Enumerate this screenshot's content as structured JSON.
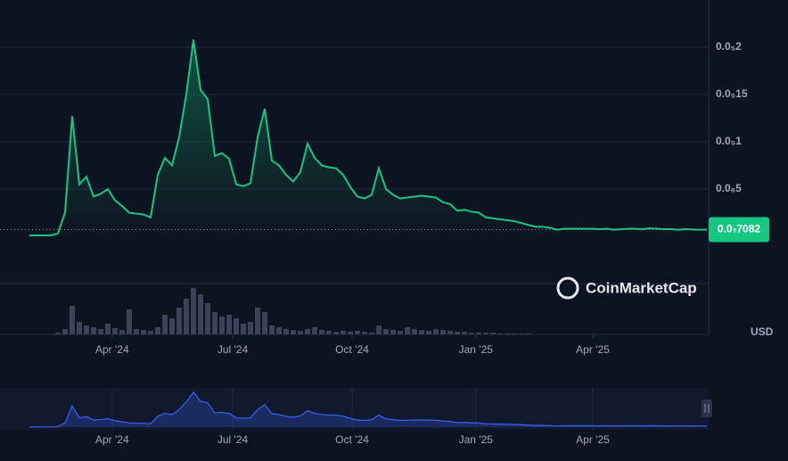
{
  "chart_data": {
    "type": "area",
    "currency": "USD",
    "watermark": "CoinMarketCap",
    "color": "#16c784",
    "navigator_color": "#3861fb",
    "volume_color": "#3b4359",
    "grid": true,
    "ylim": [
      0,
      2.5e-06
    ],
    "yticks": [
      {
        "value": 5e-07,
        "label": "0.0₆5"
      },
      {
        "value": 1e-06,
        "label": "0.0₅1"
      },
      {
        "value": 1.5e-06,
        "label": "0.0₅15"
      },
      {
        "value": 2e-06,
        "label": "0.0₅2"
      }
    ],
    "xticks": [
      {
        "value": 11.6,
        "label": "Apr '24"
      },
      {
        "value": 28.5,
        "label": "Jul '24"
      },
      {
        "value": 45.25,
        "label": "Oct '24"
      },
      {
        "value": 62.6,
        "label": "Jan '25"
      },
      {
        "value": 79,
        "label": "Apr '25"
      }
    ],
    "current_price": {
      "value": 7.082e-08,
      "label": "0.0₇7082"
    },
    "values": [
      1e-08,
      1e-08,
      1e-08,
      1e-08,
      3e-08,
      2.5e-07,
      1.27e-06,
      5.5e-07,
      6.3e-07,
      4.2e-07,
      4.5e-07,
      5e-07,
      3.8e-07,
      3.2e-07,
      2.5e-07,
      2.4e-07,
      2.3e-07,
      2e-07,
      6.5e-07,
      8.3e-07,
      7.5e-07,
      1.05e-06,
      1.5e-06,
      2.08e-06,
      1.55e-06,
      1.45e-06,
      8.5e-07,
      8.8e-07,
      8.2e-07,
      5.5e-07,
      5.3e-07,
      5.6e-07,
      1.05e-06,
      1.35e-06,
      8e-07,
      7.5e-07,
      6.5e-07,
      5.8e-07,
      6.8e-07,
      9.8e-07,
      8.3e-07,
      7.5e-07,
      7.3e-07,
      7.2e-07,
      6.5e-07,
      5.2e-07,
      4.2e-07,
      4e-07,
      4.4e-07,
      7.2e-07,
      5e-07,
      4.4e-07,
      4e-07,
      4.1e-07,
      4.2e-07,
      4.3e-07,
      4.2e-07,
      4.1e-07,
      3.6e-07,
      3.4e-07,
      2.7e-07,
      2.8e-07,
      2.6e-07,
      2.5e-07,
      2e-07,
      1.9e-07,
      1.8e-07,
      1.7e-07,
      1.6e-07,
      1.4e-07,
      1.2e-07,
      1e-07,
      1e-07,
      9e-08,
      7e-08,
      8e-08,
      8e-08,
      8e-08,
      8e-08,
      8e-08,
      7.5e-08,
      8e-08,
      7e-08,
      7.5e-08,
      8e-08,
      8e-08,
      7.5e-08,
      8.5e-08,
      8e-08,
      7.5e-08,
      7.5e-08,
      7e-08,
      7.5e-08,
      7.2e-08,
      7e-08,
      7.082e-08
    ],
    "volume": [
      0,
      0,
      0,
      0,
      2,
      6,
      32,
      14,
      10,
      8,
      6,
      12,
      7,
      5,
      28,
      6,
      5,
      4,
      8,
      22,
      18,
      30,
      40,
      52,
      45,
      35,
      25,
      20,
      22,
      18,
      12,
      14,
      30,
      25,
      10,
      8,
      6,
      5,
      4,
      6,
      8,
      5,
      4,
      3,
      4,
      3,
      4,
      3,
      2,
      10,
      6,
      5,
      4,
      8,
      6,
      5,
      4,
      6,
      5,
      4,
      3,
      3,
      2,
      2,
      2,
      2,
      1,
      1,
      1,
      1,
      1,
      0,
      0,
      0,
      0,
      0,
      0,
      0,
      0,
      0,
      0,
      0,
      0,
      0,
      0,
      0,
      0,
      0,
      0,
      0,
      0,
      0,
      0,
      0,
      0,
      0
    ]
  }
}
